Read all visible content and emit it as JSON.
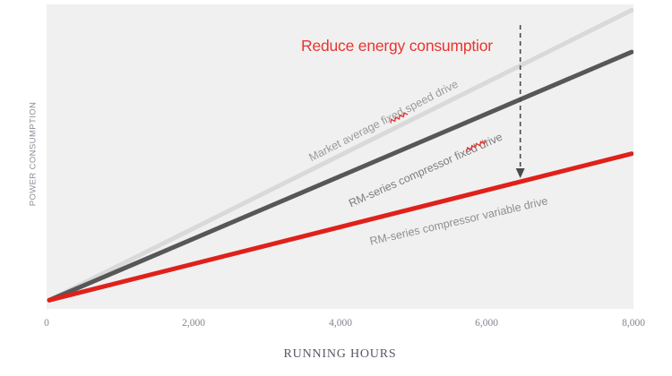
{
  "chart_data": {
    "type": "line",
    "title": "",
    "xlabel": "RUNNING HOURS",
    "ylabel": "POWER CONSUMPTION",
    "xlim": [
      0,
      8000
    ],
    "x_ticks": [
      "0",
      "2,000",
      "4,000",
      "6,000",
      "8,000"
    ],
    "x_tick_positions": [
      0,
      2000,
      4000,
      6000,
      8000
    ],
    "grid": false,
    "legend_position": "inline-rotated-labels",
    "plot_bg": "#f0f0f1",
    "series": [
      {
        "name": "Market average fixed speed drive",
        "color": "#d9d9d9",
        "label_color": "#9b9b9b",
        "x": [
          0,
          8000
        ],
        "y_rel": [
          0.02,
          0.99
        ]
      },
      {
        "name": "RM-series compressor fixed drive",
        "color": "#575757",
        "label_color": "#7d7d7d",
        "x": [
          0,
          8000
        ],
        "y_rel": [
          0.02,
          0.85
        ]
      },
      {
        "name": "RM-series compressor variable drive",
        "color": "#e0211a",
        "label_color": "#8f8f8f",
        "x": [
          0,
          8000
        ],
        "y_rel": [
          0.02,
          0.51
        ]
      }
    ],
    "annotation": {
      "text": "Reduce energy consumptior",
      "color": "#e8352e",
      "arrow_x": 6470,
      "arrow_color": "#4a4a4a",
      "arrow_style": "dashed"
    },
    "spellcheck_color": "#e8352e"
  }
}
